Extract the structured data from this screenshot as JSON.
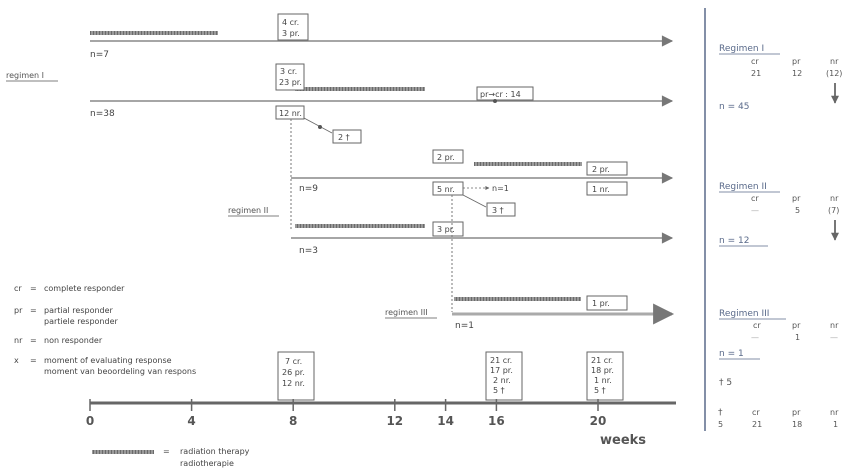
{
  "arm_top": {
    "n": "n=7",
    "box": [
      "4  cr.",
      "3  pr."
    ]
  },
  "regimen1": {
    "label": "regimen I",
    "n": "n=38",
    "box_top": [
      "3  cr.",
      "23  pr."
    ],
    "box_nr": "12  nr.",
    "dead": "2 †",
    "pr_cr": "pr→cr : 14"
  },
  "regimen2": {
    "label": "regimen II",
    "n9": "n=9",
    "n3": "n=3",
    "box_pr": "2  pr.",
    "box_nr": "5  nr.",
    "n1_arrow": "n=1",
    "dead": "3 †",
    "end_pr": "2  pr.",
    "end_nr": "1  nr.",
    "box_3pr": "3  pr."
  },
  "regimen3": {
    "label": "regimen III",
    "n": "n=1",
    "end_pr": "1  pr."
  },
  "legend": {
    "cr": {
      "abbr": "cr",
      "lines": [
        "complete responder"
      ]
    },
    "pr": {
      "abbr": "pr",
      "lines": [
        "partial responder",
        "partiele responder"
      ]
    },
    "nr": {
      "abbr": "nr",
      "lines": [
        "non responder"
      ]
    },
    "x": {
      "abbr": "x",
      "lines": [
        "moment of evaluating response",
        "moment van beoordeling van respons"
      ]
    },
    "radiation": [
      "radiation therapy",
      "radiotherapie"
    ]
  },
  "eval_boxes": [
    [
      "7  cr.",
      "26  pr.",
      "12  nr."
    ],
    [
      "21  cr.",
      "17  pr.",
      "2  nr.",
      "5  †"
    ],
    [
      "21  cr.",
      "18  pr.",
      "1  nr.",
      "5  †"
    ]
  ],
  "axis": {
    "ticks": [
      {
        "week": 0,
        "label": "0"
      },
      {
        "week": 4,
        "label": "4"
      },
      {
        "week": 8,
        "label": "8"
      },
      {
        "week": 12,
        "label": "12"
      },
      {
        "week": 14,
        "label": "14"
      },
      {
        "week": 16,
        "label": "16"
      },
      {
        "week": 20,
        "label": "20"
      }
    ],
    "unit": "weeks"
  },
  "summary": {
    "r1": {
      "title": "Regimen I",
      "cols": [
        "cr",
        "pr",
        "nr"
      ],
      "vals": [
        "21",
        "12",
        "(12)"
      ],
      "n": "n = 45"
    },
    "r2": {
      "title": "Regimen II",
      "cols": [
        "cr",
        "pr",
        "nr"
      ],
      "vals": [
        "—",
        "5",
        "(7)"
      ],
      "n": "n = 12"
    },
    "r3": {
      "title": "Regimen III",
      "cols": [
        "cr",
        "pr",
        "nr"
      ],
      "vals": [
        "—",
        "1",
        "—"
      ],
      "n": "n = 1",
      "dead": "† 5"
    },
    "totals": {
      "cols": [
        "†",
        "cr",
        "pr",
        "nr"
      ],
      "vals": [
        "5",
        "21",
        "18",
        "1"
      ]
    }
  },
  "colors": {
    "ink": "#444444",
    "rt_bar": "#8c8c8c",
    "blue": "#5a6a8a",
    "arrow": "#777777"
  }
}
